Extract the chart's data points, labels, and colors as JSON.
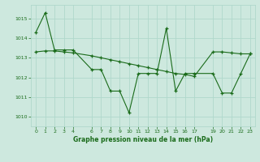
{
  "bg_color": "#cde8de",
  "grid_color": "#b0d8cc",
  "line_color": "#1a6b1a",
  "title": "Graphe pression niveau de la mer (hPa)",
  "title_color": "#1a6b1a",
  "ylim": [
    1009.5,
    1015.7
  ],
  "xlim": [
    -0.5,
    23.5
  ],
  "yticks": [
    1010,
    1011,
    1012,
    1013,
    1014,
    1015
  ],
  "xticks": [
    0,
    1,
    2,
    3,
    4,
    6,
    7,
    8,
    9,
    10,
    11,
    12,
    13,
    14,
    15,
    16,
    17,
    19,
    20,
    21,
    22,
    23
  ],
  "series1_x": [
    0,
    1,
    2,
    3,
    4,
    6,
    7,
    8,
    9,
    10,
    11,
    12,
    13,
    14,
    15,
    16,
    17,
    19,
    20,
    21,
    22,
    23
  ],
  "series1_y": [
    1014.3,
    1015.3,
    1013.4,
    1013.4,
    1013.4,
    1012.4,
    1012.4,
    1011.3,
    1011.3,
    1010.2,
    1012.2,
    1012.2,
    1012.2,
    1014.5,
    1011.3,
    1012.2,
    1012.2,
    1012.2,
    1011.2,
    1011.2,
    1012.2,
    1013.2
  ],
  "series2_x": [
    0,
    1,
    2,
    3,
    4,
    6,
    7,
    8,
    9,
    10,
    11,
    12,
    13,
    14,
    15,
    16,
    17,
    19,
    20,
    21,
    22,
    23
  ],
  "series2_y": [
    1013.3,
    1013.35,
    1013.35,
    1013.3,
    1013.25,
    1013.1,
    1013.0,
    1012.9,
    1012.8,
    1012.7,
    1012.6,
    1012.5,
    1012.4,
    1012.3,
    1012.2,
    1012.15,
    1012.05,
    1013.3,
    1013.3,
    1013.25,
    1013.2,
    1013.2
  ]
}
